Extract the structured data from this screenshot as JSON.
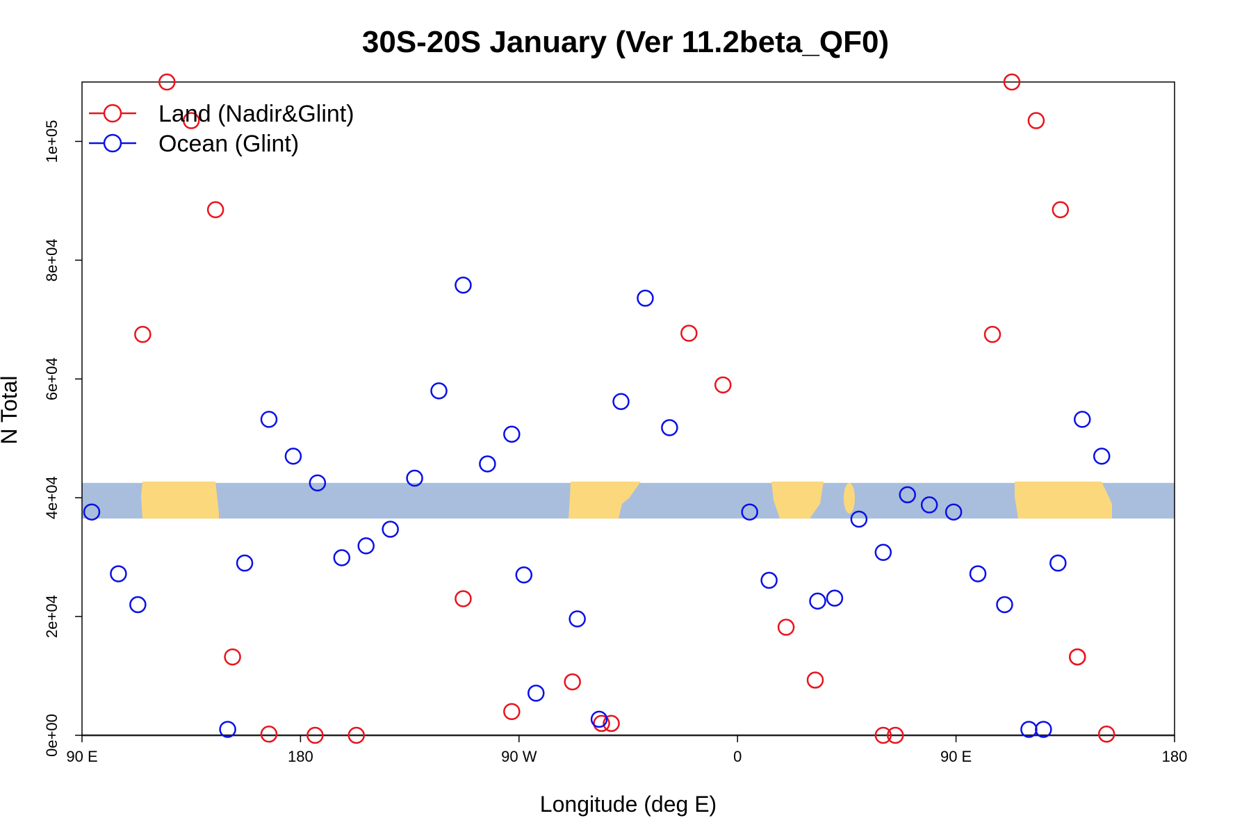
{
  "chart_data": {
    "type": "scatter",
    "title": "30S-20S January (Ver 11.2beta_QF0)",
    "xlabel": "Longitude (deg E)",
    "ylabel": "N Total",
    "xlim": [
      90,
      540
    ],
    "ylim": [
      0,
      110000
    ],
    "x_ticks": [
      {
        "value": 90,
        "label": "90 E"
      },
      {
        "value": 180,
        "label": "180"
      },
      {
        "value": 270,
        "label": "90 W"
      },
      {
        "value": 360,
        "label": "0"
      },
      {
        "value": 450,
        "label": "90 E"
      },
      {
        "value": 540,
        "label": "180"
      }
    ],
    "y_ticks": [
      {
        "value": 0,
        "label": "0e+00"
      },
      {
        "value": 20000,
        "label": "2e+04"
      },
      {
        "value": 40000,
        "label": "4e+04"
      },
      {
        "value": 60000,
        "label": "6e+04"
      },
      {
        "value": 80000,
        "label": "8e+04"
      },
      {
        "value": 100000,
        "label": "1e+05"
      }
    ],
    "map_strip": {
      "y_min": 36500,
      "y_max": 42500,
      "ocean_color": "#a8bedc",
      "land_color": "#fcd87c"
    },
    "legend": {
      "position": "top-left"
    },
    "series": [
      {
        "name": "Land (Nadir&Glint)",
        "color": "#e8141e",
        "x": [
          115,
          125,
          135,
          145,
          152,
          167,
          186,
          203,
          247,
          267,
          292,
          304,
          308,
          340,
          354,
          380,
          392,
          420,
          425,
          465,
          473,
          483,
          493,
          500,
          500,
          512
        ],
        "y": [
          67500,
          110000,
          103500,
          88500,
          13200,
          200,
          0,
          0,
          23000,
          4000,
          9000,
          2000,
          2000,
          67700,
          59000,
          18200,
          9300,
          0,
          0,
          67500,
          110000,
          103500,
          88500,
          13200,
          13200,
          200
        ]
      },
      {
        "name": "Ocean (Glint)",
        "color": "#0a10e6",
        "x": [
          94,
          105,
          113,
          150,
          157,
          167,
          177,
          187,
          197,
          207,
          217,
          227,
          237,
          247,
          257,
          267,
          272,
          277,
          294,
          303,
          312,
          322,
          332,
          365,
          373,
          393,
          400,
          410,
          420,
          430,
          439,
          449,
          459,
          470,
          480,
          486,
          492,
          502,
          510
        ],
        "y": [
          37600,
          27200,
          22000,
          1000,
          29000,
          53200,
          47000,
          42500,
          29900,
          31900,
          34700,
          43300,
          58000,
          75800,
          45700,
          50700,
          27000,
          7100,
          19600,
          2700,
          56200,
          73600,
          51800,
          37600,
          26100,
          22600,
          23100,
          36400,
          30800,
          40500,
          38800,
          37600,
          27200,
          22000,
          1000,
          1000,
          29000,
          53200,
          47000
        ]
      }
    ]
  }
}
